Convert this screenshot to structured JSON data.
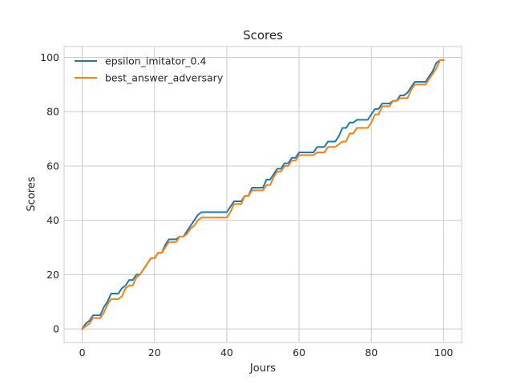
{
  "chart_data": {
    "type": "line",
    "title": "Scores",
    "xlabel": "Jours",
    "ylabel": "Scores",
    "xlim": [
      -5,
      105
    ],
    "ylim": [
      -5,
      104
    ],
    "xticks": [
      0,
      20,
      40,
      60,
      80,
      100
    ],
    "yticks": [
      0,
      20,
      40,
      60,
      80,
      100
    ],
    "xtick_labels": [
      "0",
      "20",
      "40",
      "60",
      "80",
      "100"
    ],
    "ytick_labels": [
      "0",
      "20",
      "40",
      "60",
      "80",
      "100"
    ],
    "grid": true,
    "legend_position": "top-left",
    "series": [
      {
        "name": "epsilon_imitator_0.4",
        "color": "#1f77b4",
        "x": [
          0,
          1,
          2,
          3,
          4,
          5,
          6,
          7,
          8,
          9,
          10,
          11,
          12,
          13,
          14,
          15,
          16,
          17,
          18,
          19,
          20,
          21,
          22,
          23,
          24,
          25,
          26,
          27,
          28,
          29,
          30,
          31,
          32,
          33,
          34,
          35,
          36,
          37,
          38,
          39,
          40,
          41,
          42,
          43,
          44,
          45,
          46,
          47,
          48,
          49,
          50,
          51,
          52,
          53,
          54,
          55,
          56,
          57,
          58,
          59,
          60,
          61,
          62,
          63,
          64,
          65,
          66,
          67,
          68,
          69,
          70,
          71,
          72,
          73,
          74,
          75,
          76,
          77,
          78,
          79,
          80,
          81,
          82,
          83,
          84,
          85,
          86,
          87,
          88,
          89,
          90,
          91,
          92,
          93,
          94,
          95,
          96,
          97,
          98,
          99,
          100
        ],
        "y": [
          0,
          2,
          3,
          5,
          5,
          5,
          8,
          10,
          13,
          13,
          13,
          15,
          16,
          18,
          18,
          20,
          20,
          22,
          24,
          26,
          26,
          28,
          28,
          31,
          33,
          33,
          33,
          34,
          34,
          36,
          38,
          40,
          42,
          43,
          43,
          43,
          43,
          43,
          43,
          43,
          43,
          45,
          47,
          47,
          47,
          49,
          49,
          52,
          52,
          52,
          52,
          55,
          55,
          57,
          59,
          59,
          61,
          61,
          63,
          63,
          65,
          65,
          65,
          65,
          65,
          67,
          67,
          67,
          69,
          69,
          69,
          71,
          74,
          74,
          76,
          76,
          77,
          77,
          77,
          77,
          79,
          81,
          81,
          83,
          83,
          83,
          84,
          84,
          86,
          86,
          87,
          89,
          91,
          91,
          91,
          91,
          93,
          95,
          98,
          99,
          99
        ]
      },
      {
        "name": "best_answer_adversary",
        "color": "#ff7f0e",
        "x": [
          0,
          1,
          2,
          3,
          4,
          5,
          6,
          7,
          8,
          9,
          10,
          11,
          12,
          13,
          14,
          15,
          16,
          17,
          18,
          19,
          20,
          21,
          22,
          23,
          24,
          25,
          26,
          27,
          28,
          29,
          30,
          31,
          32,
          33,
          34,
          35,
          36,
          37,
          38,
          39,
          40,
          41,
          42,
          43,
          44,
          45,
          46,
          47,
          48,
          49,
          50,
          51,
          52,
          53,
          54,
          55,
          56,
          57,
          58,
          59,
          60,
          61,
          62,
          63,
          64,
          65,
          66,
          67,
          68,
          69,
          70,
          71,
          72,
          73,
          74,
          75,
          76,
          77,
          78,
          79,
          80,
          81,
          82,
          83,
          84,
          85,
          86,
          87,
          88,
          89,
          90,
          91,
          92,
          93,
          94,
          95,
          96,
          97,
          98,
          99,
          100
        ],
        "y": [
          0,
          1,
          2,
          4,
          4,
          4,
          6,
          9,
          11,
          11,
          11,
          12,
          15,
          16,
          16,
          19,
          20,
          22,
          24,
          26,
          26,
          28,
          28,
          30,
          32,
          32,
          32,
          34,
          34,
          35,
          37,
          38,
          40,
          41,
          41,
          41,
          41,
          41,
          41,
          41,
          41,
          43,
          46,
          46,
          46,
          49,
          49,
          51,
          51,
          51,
          51,
          53,
          53,
          56,
          58,
          58,
          60,
          60,
          62,
          62,
          64,
          64,
          64,
          64,
          64,
          65,
          65,
          65,
          67,
          67,
          67,
          68,
          69,
          69,
          72,
          72,
          74,
          74,
          74,
          74,
          76,
          79,
          79,
          82,
          82,
          82,
          84,
          84,
          85,
          85,
          85,
          88,
          90,
          90,
          90,
          90,
          92,
          94,
          96,
          99,
          99
        ]
      }
    ]
  }
}
